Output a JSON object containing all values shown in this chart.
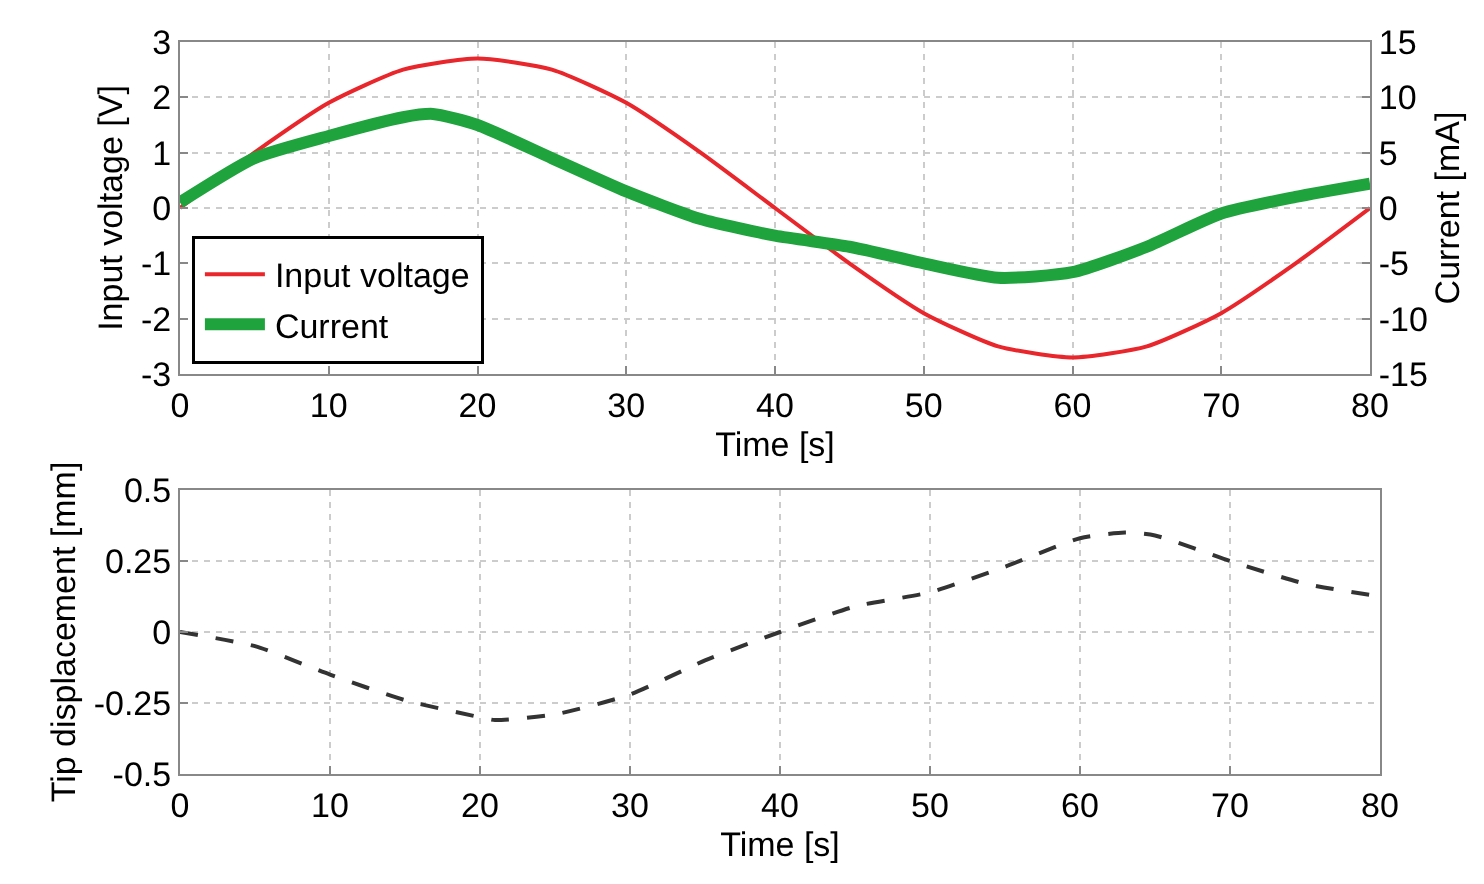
{
  "chart_data": [
    {
      "type": "line",
      "xlabel": "Time [s]",
      "ylabel": "Input voltage [V]",
      "y2label": "Current [mA]",
      "xlim": [
        0,
        80
      ],
      "xticks": [
        0,
        10,
        20,
        30,
        40,
        50,
        60,
        70,
        80
      ],
      "ylim": [
        -3,
        3
      ],
      "yticks": [
        -3,
        -2,
        -1,
        0,
        1,
        2,
        3
      ],
      "y2lim": [
        -15,
        15
      ],
      "y2ticks": [
        -15,
        -10,
        -5,
        0,
        5,
        10,
        15
      ],
      "grid": true,
      "legend": "bottom left",
      "x": [
        0,
        5,
        10,
        15,
        20,
        25,
        30,
        35,
        40,
        45,
        50,
        55,
        60,
        65,
        70,
        75,
        80
      ],
      "series": [
        {
          "name": "Input voltage",
          "color": "#e8262b",
          "values": [
            0,
            1.0,
            1.9,
            2.5,
            2.7,
            2.5,
            1.9,
            1.0,
            0,
            -1.0,
            -1.9,
            -2.5,
            -2.7,
            -2.5,
            -1.9,
            -1.0,
            0
          ]
        },
        {
          "name": "Current",
          "color": "#1fa33c",
          "axis": "y2",
          "x": [
            0,
            5,
            10,
            15,
            17,
            20,
            25,
            30,
            35,
            40,
            45,
            50,
            55,
            60,
            65,
            70,
            75,
            80
          ],
          "values": [
            0.5,
            4.5,
            6.5,
            8.2,
            8.5,
            7.5,
            4.5,
            1.5,
            -1,
            -2.5,
            -3.5,
            -5,
            -6.3,
            -5.8,
            -3.5,
            -0.5,
            1,
            2.2
          ]
        }
      ]
    },
    {
      "type": "line",
      "xlabel": "Time [s]",
      "ylabel": "Tip displacement [mm]",
      "xlim": [
        0,
        80
      ],
      "xticks": [
        0,
        10,
        20,
        30,
        40,
        50,
        60,
        70,
        80
      ],
      "ylim": [
        -0.5,
        0.5
      ],
      "yticks": [
        -0.5,
        -0.25,
        0,
        0.25,
        0.5
      ],
      "grid": true,
      "line_style": "dashed",
      "x": [
        0,
        5,
        10,
        15,
        20,
        21,
        25,
        30,
        35,
        40,
        45,
        50,
        55,
        60,
        63,
        65,
        70,
        75,
        80
      ],
      "series": [
        {
          "color": "#333333",
          "values": [
            0,
            -0.05,
            -0.15,
            -0.24,
            -0.3,
            -0.31,
            -0.29,
            -0.22,
            -0.1,
            0,
            0.09,
            0.14,
            0.23,
            0.33,
            0.35,
            0.34,
            0.25,
            0.17,
            0.125
          ]
        }
      ]
    }
  ]
}
